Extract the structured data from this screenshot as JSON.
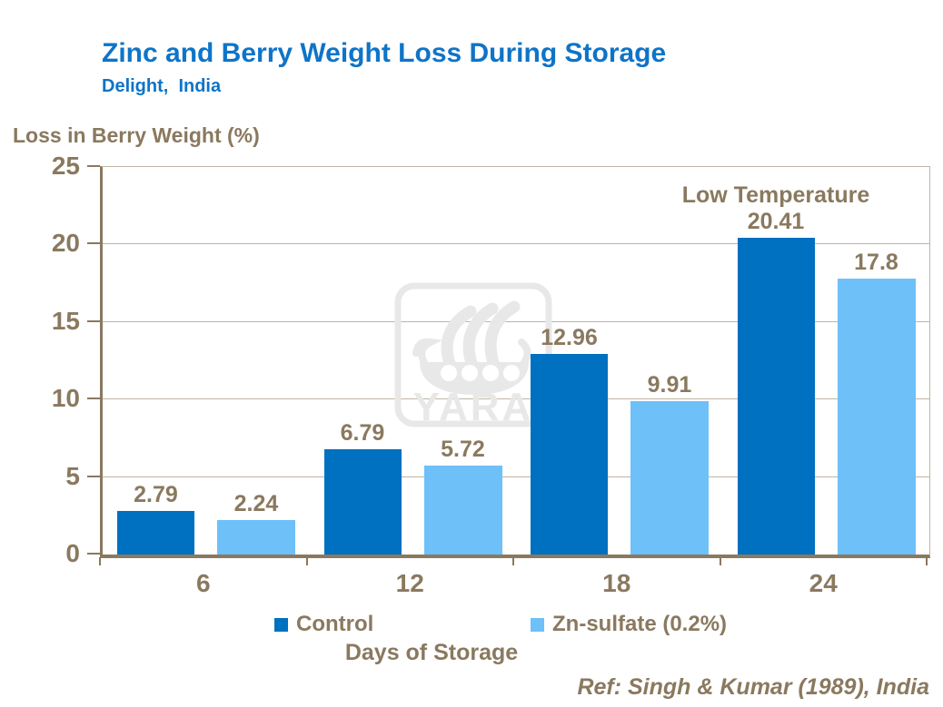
{
  "header": {
    "title": "Zinc and Berry Weight Loss During Storage",
    "subtitle": "Delight,  India"
  },
  "watermark": {
    "brand": "YARA",
    "icon": "viking-ship-logo"
  },
  "footer": {
    "reference": "Ref: Singh & Kumar (1989), India"
  },
  "colors": {
    "title_blue": "#0e74c8",
    "taupe_text": "#8a795f",
    "gridline": "#c0b4a3",
    "control_blue": "#0070c0",
    "zn_sulfate_blue": "#6ec0f8",
    "watermark_gray": "#e8e8e8"
  },
  "chart_data": {
    "type": "bar",
    "title": "Zinc and Berry Weight Loss During Storage",
    "subtitle": "Delight, India",
    "categories": [
      "6",
      "12",
      "18",
      "24"
    ],
    "series": [
      {
        "name": "Control",
        "color": "#0070c0",
        "values": [
          2.79,
          6.79,
          12.96,
          20.41
        ],
        "labels": [
          "2.79",
          "6.79",
          "12.96",
          "20.41"
        ]
      },
      {
        "name": "Zn-sulfate (0.2%)",
        "color": "#6ec0f8",
        "values": [
          2.24,
          5.72,
          9.91,
          17.8
        ],
        "labels": [
          "2.24",
          "5.72",
          "9.91",
          "17.8"
        ]
      }
    ],
    "xlabel": "Days of Storage",
    "ylabel": "Loss in Berry Weight (%)",
    "ylim": [
      0,
      25
    ],
    "yticks": [
      0,
      5,
      10,
      15,
      20,
      25
    ],
    "grid": true,
    "legend_position": "bottom",
    "annotations": [
      {
        "text": "Low Temperature",
        "target_category": "24",
        "target_series": "Control"
      }
    ],
    "reference": "Ref: Singh & Kumar (1989), India"
  }
}
